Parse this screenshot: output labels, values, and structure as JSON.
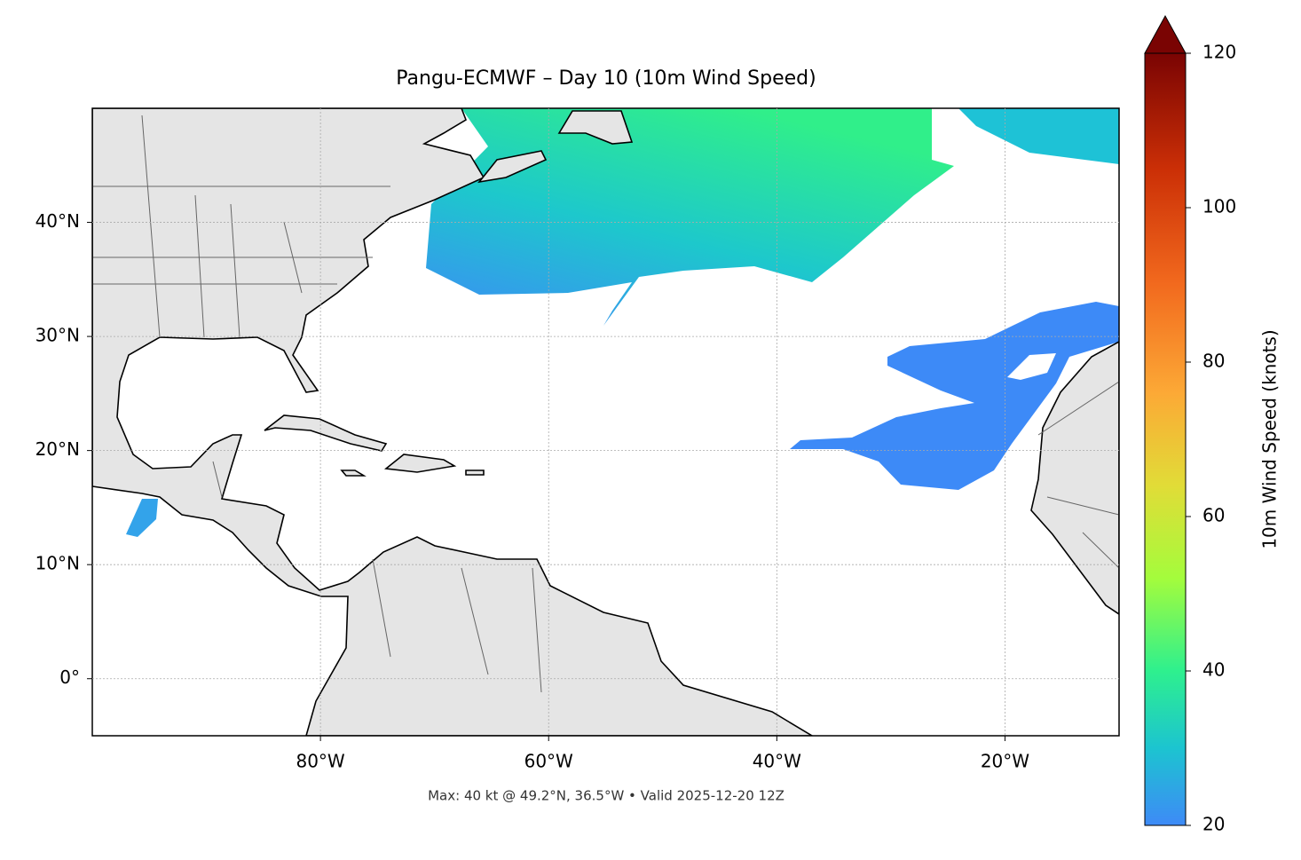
{
  "chart_data": {
    "type": "map",
    "title": "Pangu-ECMWF – Day 10 (10m Wind Speed)",
    "subtitle": "Max: 40 kt @ 49.2°N, 36.5°W • Valid 2025-12-20 12Z",
    "xlim": [
      -100,
      -10
    ],
    "ylim": [
      -5,
      50
    ],
    "xticks": [
      {
        "value": -80,
        "label": "80°W"
      },
      {
        "value": -60,
        "label": "60°W"
      },
      {
        "value": -40,
        "label": "40°W"
      },
      {
        "value": -20,
        "label": "20°W"
      }
    ],
    "yticks": [
      {
        "value": 0,
        "label": "0°"
      },
      {
        "value": 10,
        "label": "10°N"
      },
      {
        "value": 20,
        "label": "20°N"
      },
      {
        "value": 30,
        "label": "30°N"
      },
      {
        "value": 40,
        "label": "40°N"
      }
    ],
    "grid": true,
    "colorbar": {
      "label": "10m Wind Speed (knots)",
      "lim": [
        20,
        120
      ],
      "ticks": [
        20,
        40,
        60,
        80,
        100,
        120
      ],
      "extend": "max"
    }
  }
}
